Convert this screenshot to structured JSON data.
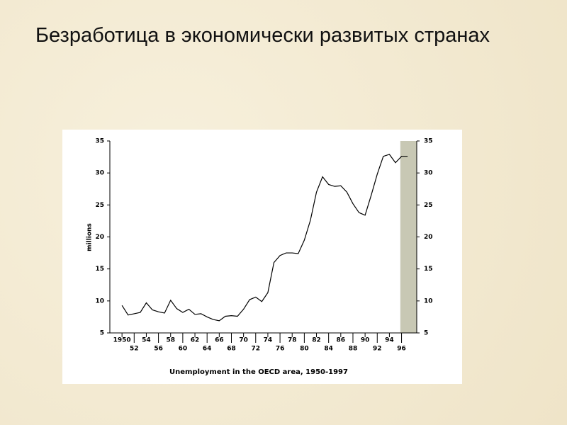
{
  "slide_title": "Безработица в экономически развитых странах",
  "chart_data": {
    "type": "line",
    "caption": "Unemployment in the OECD area, 1950-1997",
    "y_label": "millions",
    "color": "#000000",
    "x": [
      1950,
      1951,
      1952,
      1953,
      1954,
      1955,
      1956,
      1957,
      1958,
      1959,
      1960,
      1961,
      1962,
      1963,
      1964,
      1965,
      1966,
      1967,
      1968,
      1969,
      1970,
      1971,
      1972,
      1973,
      1974,
      1975,
      1976,
      1977,
      1978,
      1979,
      1980,
      1981,
      1982,
      1983,
      1984,
      1985,
      1986,
      1987,
      1988,
      1989,
      1990,
      1991,
      1992,
      1993,
      1994,
      1995,
      1996,
      1997
    ],
    "values": [
      9.3,
      7.8,
      8.0,
      8.2,
      9.7,
      8.6,
      8.3,
      8.1,
      10.1,
      8.8,
      8.2,
      8.7,
      7.9,
      8.0,
      7.5,
      7.1,
      6.9,
      7.6,
      7.7,
      7.6,
      8.7,
      10.2,
      10.6,
      9.9,
      11.3,
      16.0,
      17.1,
      17.5,
      17.5,
      17.4,
      19.5,
      22.6,
      27.0,
      29.4,
      28.2,
      27.9,
      28.0,
      27.0,
      25.2,
      23.8,
      23.4,
      26.5,
      29.8,
      32.6,
      32.9,
      31.6,
      32.6,
      32.6
    ],
    "xlim": [
      1948,
      1998.5
    ],
    "xticks": [
      {
        "value": 1950,
        "label": "1950"
      },
      {
        "value": 1952,
        "label": "52"
      },
      {
        "value": 1954,
        "label": "54"
      },
      {
        "value": 1956,
        "label": "56"
      },
      {
        "value": 1958,
        "label": "58"
      },
      {
        "value": 1960,
        "label": "60"
      },
      {
        "value": 1962,
        "label": "62"
      },
      {
        "value": 1964,
        "label": "64"
      },
      {
        "value": 1966,
        "label": "66"
      },
      {
        "value": 1968,
        "label": "68"
      },
      {
        "value": 1970,
        "label": "70"
      },
      {
        "value": 1972,
        "label": "72"
      },
      {
        "value": 1974,
        "label": "74"
      },
      {
        "value": 1976,
        "label": "76"
      },
      {
        "value": 1978,
        "label": "78"
      },
      {
        "value": 1980,
        "label": "80"
      },
      {
        "value": 1982,
        "label": "82"
      },
      {
        "value": 1984,
        "label": "84"
      },
      {
        "value": 1986,
        "label": "86"
      },
      {
        "value": 1988,
        "label": "88"
      },
      {
        "value": 1990,
        "label": "90"
      },
      {
        "value": 1992,
        "label": "92"
      },
      {
        "value": 1994,
        "label": "94"
      },
      {
        "value": 1996,
        "label": "96"
      }
    ],
    "ylim": [
      5,
      35
    ],
    "yticks": [
      5,
      10,
      15,
      20,
      25,
      30,
      35
    ],
    "y2lim": [
      5,
      35
    ],
    "y2ticks": [
      5,
      10,
      15,
      20,
      25,
      30,
      35
    ],
    "highlight_xrange": [
      1995.8,
      1998.5
    ],
    "highlight_color": "#c8c8b4"
  }
}
